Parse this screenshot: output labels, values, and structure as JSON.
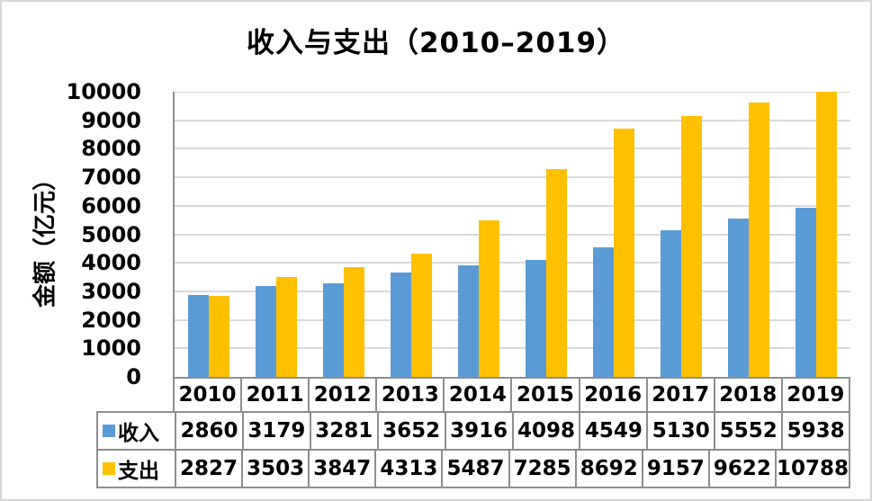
{
  "chart_data": {
    "type": "bar",
    "title": "收入与支出（2010–2019）",
    "ylabel": "金额（亿元）",
    "xlabel": "",
    "categories": [
      "2010",
      "2011",
      "2012",
      "2013",
      "2014",
      "2015",
      "2016",
      "2017",
      "2018",
      "2019"
    ],
    "series": [
      {
        "name": "收入",
        "color": "#5B9BD5",
        "values": [
          2860,
          3179,
          3281,
          3652,
          3916,
          4098,
          4549,
          5130,
          5552,
          5938
        ]
      },
      {
        "name": "支出",
        "color": "#FFC000",
        "values": [
          2827,
          3503,
          3847,
          4313,
          5487,
          7285,
          8692,
          9157,
          9622,
          10788
        ]
      }
    ],
    "ylim": [
      0,
      10000
    ],
    "yticks": [
      0,
      1000,
      2000,
      3000,
      4000,
      5000,
      6000,
      7000,
      8000,
      9000,
      10000
    ],
    "grid": true,
    "legend_position": "data-table-left",
    "colors": {
      "grid": "#d9d9d9",
      "axis": "#8e8e8e",
      "table_border": "#8e8e8e",
      "text": "#000000"
    }
  }
}
